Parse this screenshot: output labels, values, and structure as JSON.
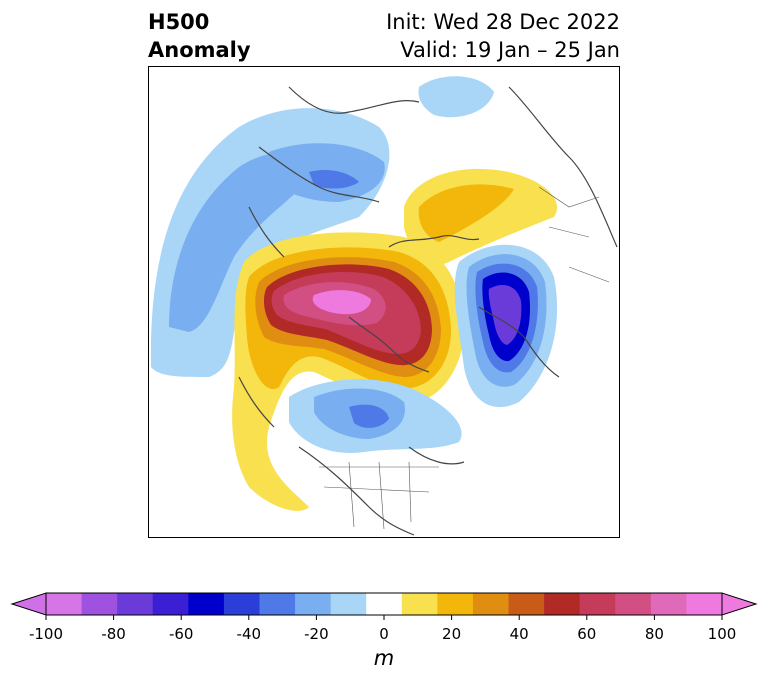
{
  "title": {
    "left_line1": "H500",
    "left_line2": "Anomaly",
    "right_line1": "Init: Wed 28 Dec 2022",
    "right_line2": "Valid: 19 Jan – 25 Jan"
  },
  "colorbar": {
    "unit": "m",
    "ticks": [
      "-100",
      "-80",
      "-60",
      "-40",
      "-20",
      "0",
      "20",
      "40",
      "60",
      "80",
      "100"
    ],
    "colors": [
      "#d575e6",
      "#9e52df",
      "#6a3bd8",
      "#3a1fd5",
      "#0000cc",
      "#2b3ed8",
      "#4f79e6",
      "#79aef0",
      "#a9d6f7",
      "#ffffff",
      "#f9e04e",
      "#f2b70a",
      "#e08e12",
      "#c95b18",
      "#b22a26",
      "#c43c5a",
      "#d24f84",
      "#e06aba",
      "#ee7ae0"
    ],
    "under_color": "#d070e6",
    "over_color": "#ee7ae0"
  }
}
